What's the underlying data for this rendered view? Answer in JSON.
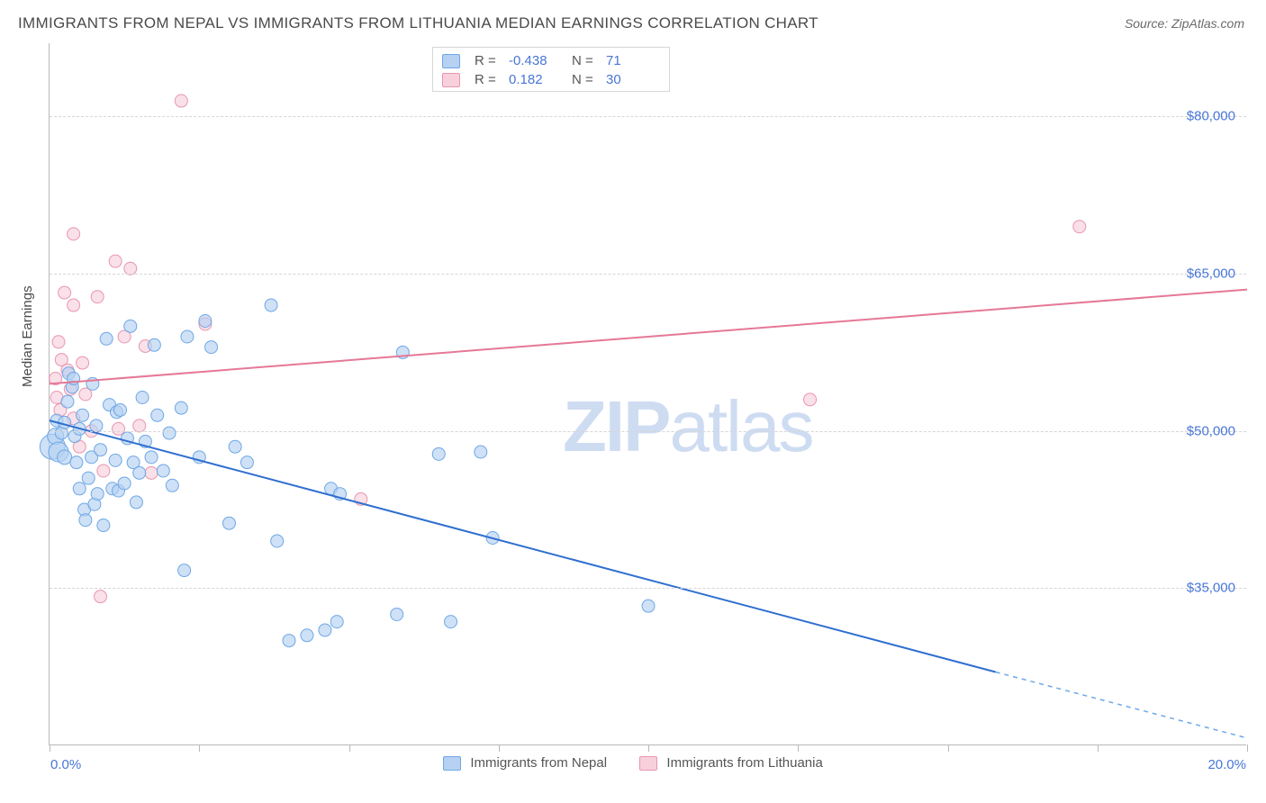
{
  "title": "IMMIGRANTS FROM NEPAL VS IMMIGRANTS FROM LITHUANIA MEDIAN EARNINGS CORRELATION CHART",
  "source": "Source: ZipAtlas.com",
  "watermark_bold": "ZIP",
  "watermark_light": "atlas",
  "axes": {
    "y_label": "Median Earnings",
    "x_min_label": "0.0%",
    "x_max_label": "20.0%",
    "x_min": 0.0,
    "x_max": 20.0,
    "y_min": 20000,
    "y_max": 87000,
    "y_ticks": [
      {
        "v": 35000,
        "label": "$35,000"
      },
      {
        "v": 50000,
        "label": "$50,000"
      },
      {
        "v": 65000,
        "label": "$65,000"
      },
      {
        "v": 80000,
        "label": "$80,000"
      }
    ],
    "x_tick_step_pct": 2.5
  },
  "colors": {
    "series_a_fill": "#b6d1f1",
    "series_a_stroke": "#6ea7e6",
    "series_a_line": "#2f6fd0",
    "series_b_fill": "#f7d0db",
    "series_b_stroke": "#e996ae",
    "series_b_line": "#e57897",
    "value_text": "#4876d6",
    "grid": "#d6d6d6",
    "axis": "#b9b9b9",
    "background": "#ffffff",
    "title_color": "#4a4a4a",
    "watermark_color": "#cedcf2"
  },
  "legend": {
    "series_a_label": "Immigrants from Nepal",
    "series_b_label": "Immigrants from Lithuania",
    "rows": [
      {
        "series": "a",
        "R_label": "R =",
        "R": "-0.438",
        "N_label": "N =",
        "N": "71"
      },
      {
        "series": "b",
        "R_label": "R =",
        "R": "0.182",
        "N_label": "N =",
        "N": "30"
      }
    ]
  },
  "series_a_reg": {
    "x1": 0.0,
    "y1": 51000,
    "solid_x": 15.8,
    "solid_y": 27000,
    "x2": 20.0,
    "y2": 20700
  },
  "series_b_reg": {
    "x1": 0.0,
    "y1": 54500,
    "x2": 20.0,
    "y2": 63500
  },
  "series_a_points": [
    {
      "x": 0.05,
      "y": 48500,
      "r": 14
    },
    {
      "x": 0.1,
      "y": 49500,
      "r": 9
    },
    {
      "x": 0.12,
      "y": 51000,
      "r": 7
    },
    {
      "x": 0.15,
      "y": 48000,
      "r": 11
    },
    {
      "x": 0.2,
      "y": 49800,
      "r": 7
    },
    {
      "x": 0.25,
      "y": 47500,
      "r": 8
    },
    {
      "x": 0.25,
      "y": 50800,
      "r": 7
    },
    {
      "x": 0.3,
      "y": 52800,
      "r": 7
    },
    {
      "x": 0.32,
      "y": 55500,
      "r": 7
    },
    {
      "x": 0.38,
      "y": 54200,
      "r": 7
    },
    {
      "x": 0.4,
      "y": 55000,
      "r": 7
    },
    {
      "x": 0.42,
      "y": 49500,
      "r": 7
    },
    {
      "x": 0.45,
      "y": 47000,
      "r": 7
    },
    {
      "x": 0.5,
      "y": 50200,
      "r": 7
    },
    {
      "x": 0.5,
      "y": 44500,
      "r": 7
    },
    {
      "x": 0.55,
      "y": 51500,
      "r": 7
    },
    {
      "x": 0.58,
      "y": 42500,
      "r": 7
    },
    {
      "x": 0.6,
      "y": 41500,
      "r": 7
    },
    {
      "x": 0.65,
      "y": 45500,
      "r": 7
    },
    {
      "x": 0.7,
      "y": 47500,
      "r": 7
    },
    {
      "x": 0.72,
      "y": 54500,
      "r": 7
    },
    {
      "x": 0.75,
      "y": 43000,
      "r": 7
    },
    {
      "x": 0.78,
      "y": 50500,
      "r": 7
    },
    {
      "x": 0.8,
      "y": 44000,
      "r": 7
    },
    {
      "x": 0.85,
      "y": 48200,
      "r": 7
    },
    {
      "x": 0.9,
      "y": 41000,
      "r": 7
    },
    {
      "x": 0.95,
      "y": 58800,
      "r": 7
    },
    {
      "x": 1.0,
      "y": 52500,
      "r": 7
    },
    {
      "x": 1.05,
      "y": 44500,
      "r": 7
    },
    {
      "x": 1.1,
      "y": 47200,
      "r": 7
    },
    {
      "x": 1.12,
      "y": 51800,
      "r": 7
    },
    {
      "x": 1.15,
      "y": 44300,
      "r": 7
    },
    {
      "x": 1.18,
      "y": 52000,
      "r": 7
    },
    {
      "x": 1.25,
      "y": 45000,
      "r": 7
    },
    {
      "x": 1.3,
      "y": 49300,
      "r": 7
    },
    {
      "x": 1.35,
      "y": 60000,
      "r": 7
    },
    {
      "x": 1.4,
      "y": 47000,
      "r": 7
    },
    {
      "x": 1.45,
      "y": 43200,
      "r": 7
    },
    {
      "x": 1.5,
      "y": 46000,
      "r": 7
    },
    {
      "x": 1.55,
      "y": 53200,
      "r": 7
    },
    {
      "x": 1.6,
      "y": 49000,
      "r": 7
    },
    {
      "x": 1.7,
      "y": 47500,
      "r": 7
    },
    {
      "x": 1.75,
      "y": 58200,
      "r": 7
    },
    {
      "x": 1.8,
      "y": 51500,
      "r": 7
    },
    {
      "x": 1.9,
      "y": 46200,
      "r": 7
    },
    {
      "x": 2.0,
      "y": 49800,
      "r": 7
    },
    {
      "x": 2.05,
      "y": 44800,
      "r": 7
    },
    {
      "x": 2.2,
      "y": 52200,
      "r": 7
    },
    {
      "x": 2.25,
      "y": 36700,
      "r": 7
    },
    {
      "x": 2.3,
      "y": 59000,
      "r": 7
    },
    {
      "x": 2.5,
      "y": 47500,
      "r": 7
    },
    {
      "x": 2.6,
      "y": 60500,
      "r": 7
    },
    {
      "x": 2.7,
      "y": 58000,
      "r": 7
    },
    {
      "x": 3.0,
      "y": 41200,
      "r": 7
    },
    {
      "x": 3.1,
      "y": 48500,
      "r": 7
    },
    {
      "x": 3.3,
      "y": 47000,
      "r": 7
    },
    {
      "x": 3.7,
      "y": 62000,
      "r": 7
    },
    {
      "x": 3.8,
      "y": 39500,
      "r": 7
    },
    {
      "x": 4.0,
      "y": 30000,
      "r": 7
    },
    {
      "x": 4.3,
      "y": 30500,
      "r": 7
    },
    {
      "x": 4.6,
      "y": 31000,
      "r": 7
    },
    {
      "x": 4.7,
      "y": 44500,
      "r": 7
    },
    {
      "x": 4.8,
      "y": 31800,
      "r": 7
    },
    {
      "x": 4.85,
      "y": 44000,
      "r": 7
    },
    {
      "x": 5.8,
      "y": 32500,
      "r": 7
    },
    {
      "x": 5.9,
      "y": 57500,
      "r": 7
    },
    {
      "x": 6.5,
      "y": 47800,
      "r": 7
    },
    {
      "x": 6.7,
      "y": 31800,
      "r": 7
    },
    {
      "x": 7.2,
      "y": 48000,
      "r": 7
    },
    {
      "x": 7.4,
      "y": 39800,
      "r": 7
    },
    {
      "x": 10.0,
      "y": 33300,
      "r": 7
    }
  ],
  "series_b_points": [
    {
      "x": 0.1,
      "y": 55000,
      "r": 7
    },
    {
      "x": 0.12,
      "y": 53200,
      "r": 7
    },
    {
      "x": 0.15,
      "y": 58500,
      "r": 7
    },
    {
      "x": 0.18,
      "y": 52000,
      "r": 7
    },
    {
      "x": 0.2,
      "y": 56800,
      "r": 7
    },
    {
      "x": 0.25,
      "y": 63200,
      "r": 7
    },
    {
      "x": 0.3,
      "y": 55800,
      "r": 7
    },
    {
      "x": 0.35,
      "y": 54000,
      "r": 7
    },
    {
      "x": 0.4,
      "y": 51200,
      "r": 7
    },
    {
      "x": 0.4,
      "y": 62000,
      "r": 7
    },
    {
      "x": 0.4,
      "y": 68800,
      "r": 7
    },
    {
      "x": 0.5,
      "y": 48500,
      "r": 7
    },
    {
      "x": 0.55,
      "y": 56500,
      "r": 7
    },
    {
      "x": 0.6,
      "y": 53500,
      "r": 7
    },
    {
      "x": 0.7,
      "y": 50000,
      "r": 7
    },
    {
      "x": 0.8,
      "y": 62800,
      "r": 7
    },
    {
      "x": 0.85,
      "y": 34200,
      "r": 7
    },
    {
      "x": 0.9,
      "y": 46200,
      "r": 7
    },
    {
      "x": 1.1,
      "y": 66200,
      "r": 7
    },
    {
      "x": 1.15,
      "y": 50200,
      "r": 7
    },
    {
      "x": 1.25,
      "y": 59000,
      "r": 7
    },
    {
      "x": 1.35,
      "y": 65500,
      "r": 7
    },
    {
      "x": 1.5,
      "y": 50500,
      "r": 7
    },
    {
      "x": 1.6,
      "y": 58100,
      "r": 7
    },
    {
      "x": 1.7,
      "y": 46000,
      "r": 7
    },
    {
      "x": 2.2,
      "y": 81500,
      "r": 7
    },
    {
      "x": 2.6,
      "y": 60200,
      "r": 7
    },
    {
      "x": 5.2,
      "y": 43500,
      "r": 7
    },
    {
      "x": 12.7,
      "y": 53000,
      "r": 7
    },
    {
      "x": 17.2,
      "y": 69500,
      "r": 7
    }
  ]
}
